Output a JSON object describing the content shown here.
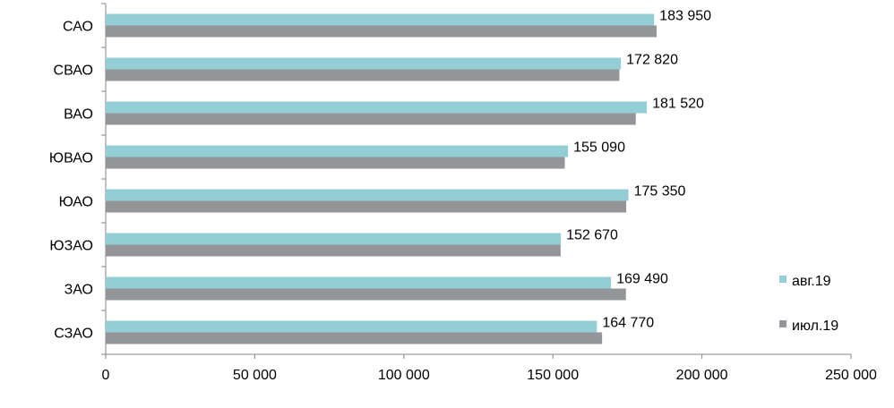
{
  "chart_data": {
    "type": "bar",
    "orientation": "horizontal",
    "categories": [
      "САО",
      "СВАО",
      "ВАО",
      "ЮВАО",
      "ЮАО",
      "ЮЗАО",
      "ЗАО",
      "СЗАО"
    ],
    "series": [
      {
        "name": "авг.19",
        "color": "#93cdd6",
        "values": [
          183950,
          172820,
          181520,
          155090,
          175350,
          152670,
          169490,
          164770
        ],
        "data_labels": [
          "183 950",
          "172 820",
          "181 520",
          "155 090",
          "175 350",
          "152 670",
          "169 490",
          "164 770"
        ]
      },
      {
        "name": "июл.19",
        "color": "#939598",
        "values": [
          184800,
          172300,
          177800,
          154000,
          174600,
          152600,
          174500,
          166500
        ]
      }
    ],
    "x_ticks": [
      0,
      50000,
      100000,
      150000,
      200000,
      250000
    ],
    "x_tick_labels": [
      "0",
      "50 000",
      "100 000",
      "150 000",
      "200 000",
      "250 000"
    ],
    "xlim": [
      0,
      250000
    ],
    "legend_position": "right",
    "grid": false,
    "title": "",
    "xlabel": "",
    "ylabel": ""
  }
}
